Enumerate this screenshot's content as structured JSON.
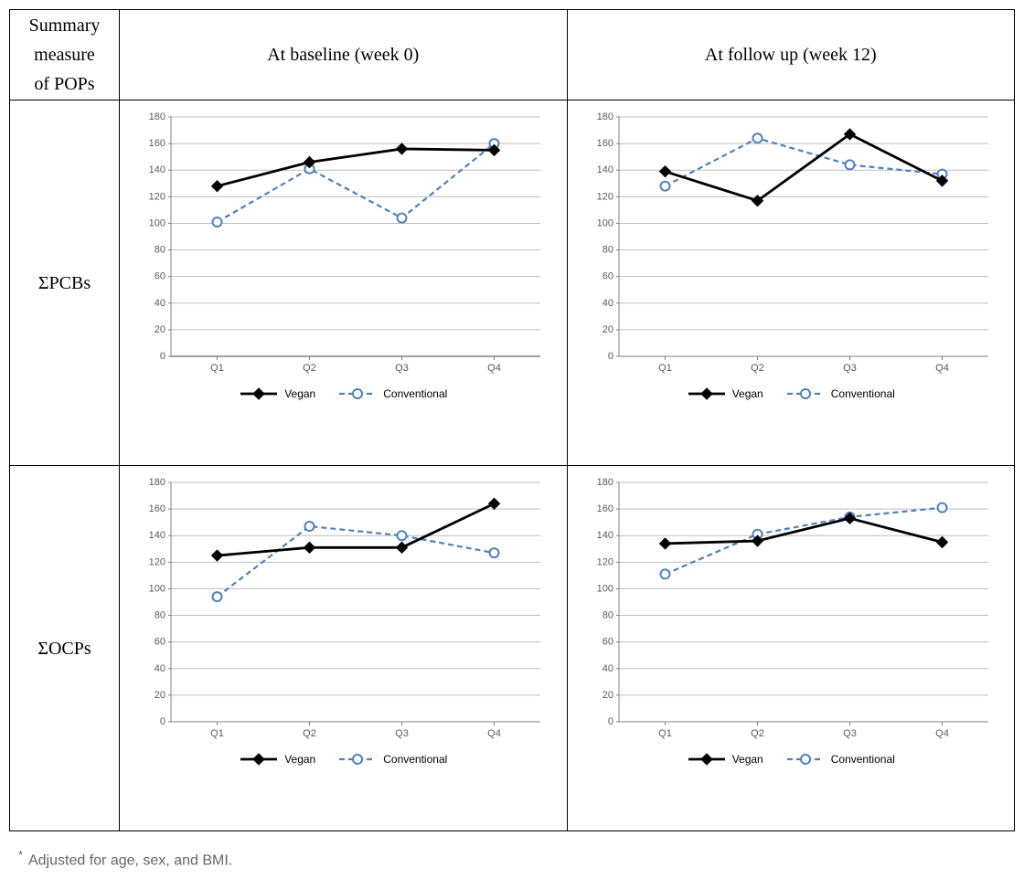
{
  "header": {
    "row_header": "Summary\nmeasure\nof POPs",
    "col1": "At baseline (week 0)",
    "col2": "At follow up (week 12)"
  },
  "rows": {
    "r1_label": "ΣPCBs",
    "r2_label": "ΣOCPs"
  },
  "footnote": "Adjusted for age, sex, and BMI.",
  "legend": {
    "series1": "Vegan",
    "series2": "Conventional"
  },
  "style": {
    "series1_color": "#000000",
    "series1_linewidth": 2.8,
    "series1_marker": "diamond",
    "series1_marker_fill": "#000000",
    "series1_marker_size": 6,
    "series2_color": "#4f81bd",
    "series2_linewidth": 2.2,
    "series2_dash": "6,4",
    "series2_marker": "circle",
    "series2_marker_fill": "#ffffff",
    "series2_marker_size": 5,
    "axis_color": "#808080",
    "grid_color": "#bfbfbf",
    "tick_font": "10px Arial",
    "legend_font": "12px Arial",
    "background": "#ffffff"
  },
  "charts": {
    "c11": {
      "type": "line",
      "categories": [
        "Q1",
        "Q2",
        "Q3",
        "Q4"
      ],
      "ylim": [
        0,
        180
      ],
      "ytick_step": 20,
      "show_zero_line": true,
      "series": [
        {
          "id": "vegan",
          "values": [
            128,
            146,
            156,
            155
          ]
        },
        {
          "id": "conv",
          "values": [
            101,
            141,
            104,
            160
          ]
        }
      ]
    },
    "c12": {
      "type": "line",
      "categories": [
        "Q1",
        "Q2",
        "Q3",
        "Q4"
      ],
      "ylim": [
        0,
        180
      ],
      "ytick_step": 20,
      "show_zero_line": false,
      "series": [
        {
          "id": "vegan",
          "values": [
            139,
            117,
            167,
            132
          ]
        },
        {
          "id": "conv",
          "values": [
            128,
            164,
            144,
            137
          ]
        }
      ]
    },
    "c21": {
      "type": "line",
      "categories": [
        "Q1",
        "Q2",
        "Q3",
        "Q4"
      ],
      "ylim": [
        0,
        180
      ],
      "ytick_step": 20,
      "show_zero_line": false,
      "series": [
        {
          "id": "vegan",
          "values": [
            125,
            131,
            131,
            164
          ]
        },
        {
          "id": "conv",
          "values": [
            94,
            147,
            140,
            127
          ]
        }
      ]
    },
    "c22": {
      "type": "line",
      "categories": [
        "Q1",
        "Q2",
        "Q3",
        "Q4"
      ],
      "ylim": [
        0,
        180
      ],
      "ytick_step": 20,
      "show_zero_line": false,
      "series": [
        {
          "id": "vegan",
          "values": [
            134,
            136,
            153,
            135
          ]
        },
        {
          "id": "conv",
          "values": [
            111,
            141,
            154,
            161
          ]
        }
      ]
    }
  }
}
